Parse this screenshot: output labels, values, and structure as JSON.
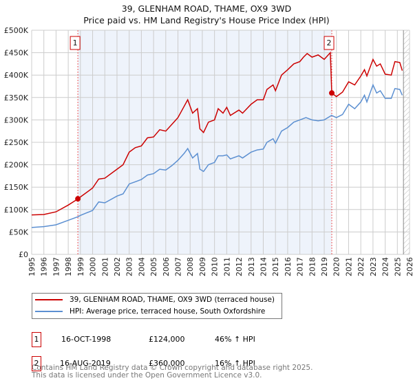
{
  "title": "39, GLENHAM ROAD, THAME, OX9 3WD",
  "subtitle": "Price paid vs. HM Land Registry's House Price Index (HPI)",
  "colors": {
    "property": "#cc0000",
    "hpi": "#5b8fd1",
    "shade": "#eef3fb"
  },
  "chart_data": {
    "type": "line",
    "title": "39, GLENHAM ROAD, THAME, OX9 3WD",
    "xlim": [
      1995,
      2026
    ],
    "ylim": [
      0,
      500000
    ],
    "x_ticks": [
      "1995",
      "1996",
      "1997",
      "1998",
      "1999",
      "2000",
      "2001",
      "2002",
      "2003",
      "2004",
      "2005",
      "2006",
      "2007",
      "2008",
      "2009",
      "2010",
      "2011",
      "2012",
      "2013",
      "2014",
      "2015",
      "2016",
      "2017",
      "2018",
      "2019",
      "2020",
      "2021",
      "2022",
      "2023",
      "2024",
      "2025",
      "2026"
    ],
    "y_ticks": [
      "£0",
      "£50K",
      "£100K",
      "£150K",
      "£200K",
      "£250K",
      "£300K",
      "£350K",
      "£400K",
      "£450K",
      "£500K"
    ],
    "grid": true,
    "series": [
      {
        "name": "39, GLENHAM ROAD, THAME, OX9 3WD (terraced house)",
        "x": [
          1995,
          1996,
          1997,
          1998,
          1998.8,
          1999,
          2000,
          2000.5,
          2001,
          2002,
          2002.5,
          2003,
          2003.5,
          2004,
          2004.5,
          2005,
          2005.5,
          2006,
          2006.5,
          2007,
          2007.5,
          2007.8,
          2008.2,
          2008.6,
          2008.8,
          2009.1,
          2009.5,
          2010,
          2010.3,
          2010.7,
          2011,
          2011.3,
          2012,
          2012.3,
          2013,
          2013.5,
          2014,
          2014.3,
          2014.8,
          2015,
          2015.5,
          2016,
          2016.5,
          2017,
          2017.3,
          2017.6,
          2018,
          2018.5,
          2019,
          2019.5,
          2019.62,
          2020,
          2020.5,
          2021,
          2021.5,
          2022,
          2022.3,
          2022.5,
          2023,
          2023.3,
          2023.6,
          2024,
          2024.5,
          2024.8,
          2025.2,
          2025.4
        ],
        "values": [
          88,
          89,
          95,
          110,
          124,
          128,
          148,
          168,
          170,
          190,
          200,
          228,
          238,
          242,
          260,
          262,
          278,
          275,
          290,
          305,
          330,
          345,
          315,
          325,
          280,
          272,
          295,
          300,
          325,
          315,
          328,
          310,
          322,
          315,
          335,
          345,
          345,
          368,
          378,
          365,
          400,
          412,
          425,
          430,
          440,
          448,
          440,
          445,
          435,
          450,
          360,
          352,
          362,
          385,
          378,
          398,
          412,
          398,
          435,
          420,
          425,
          402,
          400,
          430,
          428,
          410
        ]
      },
      {
        "name": "HPI: Average price, terraced house, South Oxfordshire",
        "x": [
          1995,
          1996,
          1997,
          1998,
          1998.8,
          1999,
          2000,
          2000.5,
          2001,
          2002,
          2002.5,
          2003,
          2003.5,
          2004,
          2004.5,
          2005,
          2005.5,
          2006,
          2006.5,
          2007,
          2007.5,
          2007.8,
          2008.2,
          2008.6,
          2008.8,
          2009.1,
          2009.5,
          2010,
          2010.3,
          2010.7,
          2011,
          2011.3,
          2012,
          2012.3,
          2013,
          2013.5,
          2014,
          2014.3,
          2014.8,
          2015,
          2015.5,
          2016,
          2016.5,
          2017,
          2017.5,
          2018,
          2018.5,
          2019,
          2019.6,
          2020,
          2020.5,
          2021,
          2021.5,
          2022,
          2022.3,
          2022.5,
          2023,
          2023.3,
          2023.6,
          2024,
          2024.5,
          2024.8,
          2025.2,
          2025.4
        ],
        "values": [
          60,
          62,
          66,
          76,
          84,
          87,
          98,
          117,
          115,
          130,
          135,
          157,
          162,
          167,
          177,
          180,
          190,
          188,
          198,
          210,
          225,
          236,
          215,
          225,
          190,
          185,
          200,
          205,
          220,
          220,
          222,
          213,
          220,
          215,
          228,
          233,
          235,
          250,
          258,
          248,
          275,
          283,
          295,
          300,
          305,
          300,
          298,
          300,
          310,
          305,
          312,
          335,
          325,
          340,
          355,
          340,
          378,
          360,
          365,
          348,
          348,
          370,
          368,
          355
        ]
      }
    ],
    "value_unit": "thousand GBP",
    "shaded_range": [
      1998.8,
      2019.62
    ],
    "hatched_from": 2025.5,
    "annotations": [
      {
        "label": "1",
        "x": 1998.79,
        "y": 124000
      },
      {
        "label": "2",
        "x": 2019.62,
        "y": 360000
      }
    ]
  },
  "legend": {
    "items": [
      "39, GLENHAM ROAD, THAME, OX9 3WD (terraced house)",
      "HPI: Average price, terraced house, South Oxfordshire"
    ]
  },
  "transactions": [
    {
      "num": "1",
      "date": "16-OCT-1998",
      "price": "£124,000",
      "hpi": "46% ↑ HPI"
    },
    {
      "num": "2",
      "date": "16-AUG-2019",
      "price": "£360,000",
      "hpi": "16% ↑ HPI"
    }
  ],
  "footer": {
    "line1": "Contains HM Land Registry data © Crown copyright and database right 2025.",
    "line2": "This data is licensed under the Open Government Licence v3.0."
  }
}
